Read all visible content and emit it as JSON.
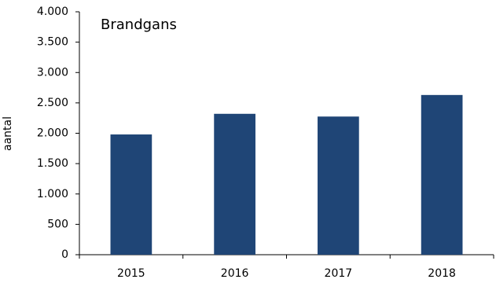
{
  "chart_data": {
    "type": "bar",
    "title": "Brandgans",
    "y_label": "aantal",
    "categories": [
      "2015",
      "2016",
      "2017",
      "2018"
    ],
    "values": [
      1980,
      2320,
      2275,
      2630
    ],
    "color": "#1f4576",
    "ylim": [
      0,
      4000
    ],
    "yticks": [
      0,
      500,
      {
        "value": 1000,
        "label": "1.000"
      },
      {
        "value": 1500,
        "label": "1.500"
      },
      {
        "value": 2000,
        "label": "2.000"
      },
      {
        "value": 2500,
        "label": "2.500"
      },
      {
        "value": 3000,
        "label": "3.000"
      },
      {
        "value": 3500,
        "label": "3.500"
      },
      {
        "value": 4000,
        "label": "4.000"
      }
    ],
    "grid": false
  }
}
